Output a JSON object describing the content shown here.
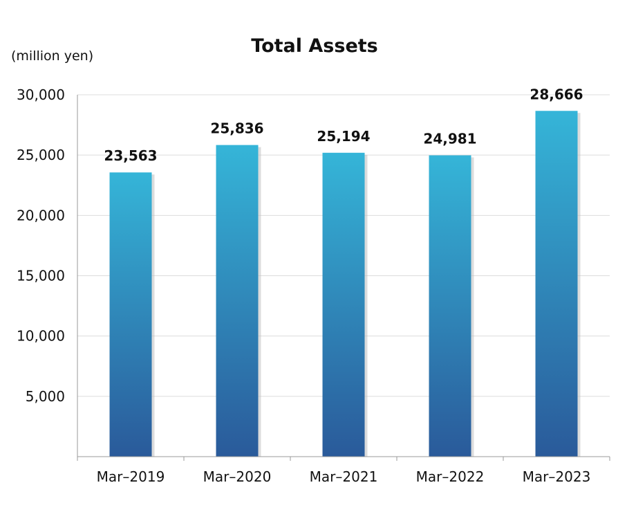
{
  "chart_data": {
    "type": "bar",
    "title": "Total Assets",
    "unit_label": "(million yen)",
    "xlabel": "",
    "ylabel": "",
    "categories": [
      "Mar–2019",
      "Mar–2020",
      "Mar–2021",
      "Mar–2022",
      "Mar–2023"
    ],
    "values": [
      23563,
      25836,
      25194,
      24981,
      28666
    ],
    "data_labels": [
      "23,563",
      "25,836",
      "25,194",
      "24,981",
      "28,666"
    ],
    "ylim": [
      0,
      30000
    ],
    "yticks": [
      5000,
      10000,
      15000,
      20000,
      25000,
      30000
    ],
    "ytick_labels": [
      "5,000",
      "10,000",
      "15,000",
      "20,000",
      "25,000",
      "30,000"
    ],
    "grid": true,
    "legend": "none",
    "colors": {
      "bar_top": "#35b5d8",
      "bar_bottom": "#2a5a9a",
      "grid": "#dcdcdc",
      "axis": "#9a9a9a",
      "shadow": "#bfbfbf"
    }
  }
}
